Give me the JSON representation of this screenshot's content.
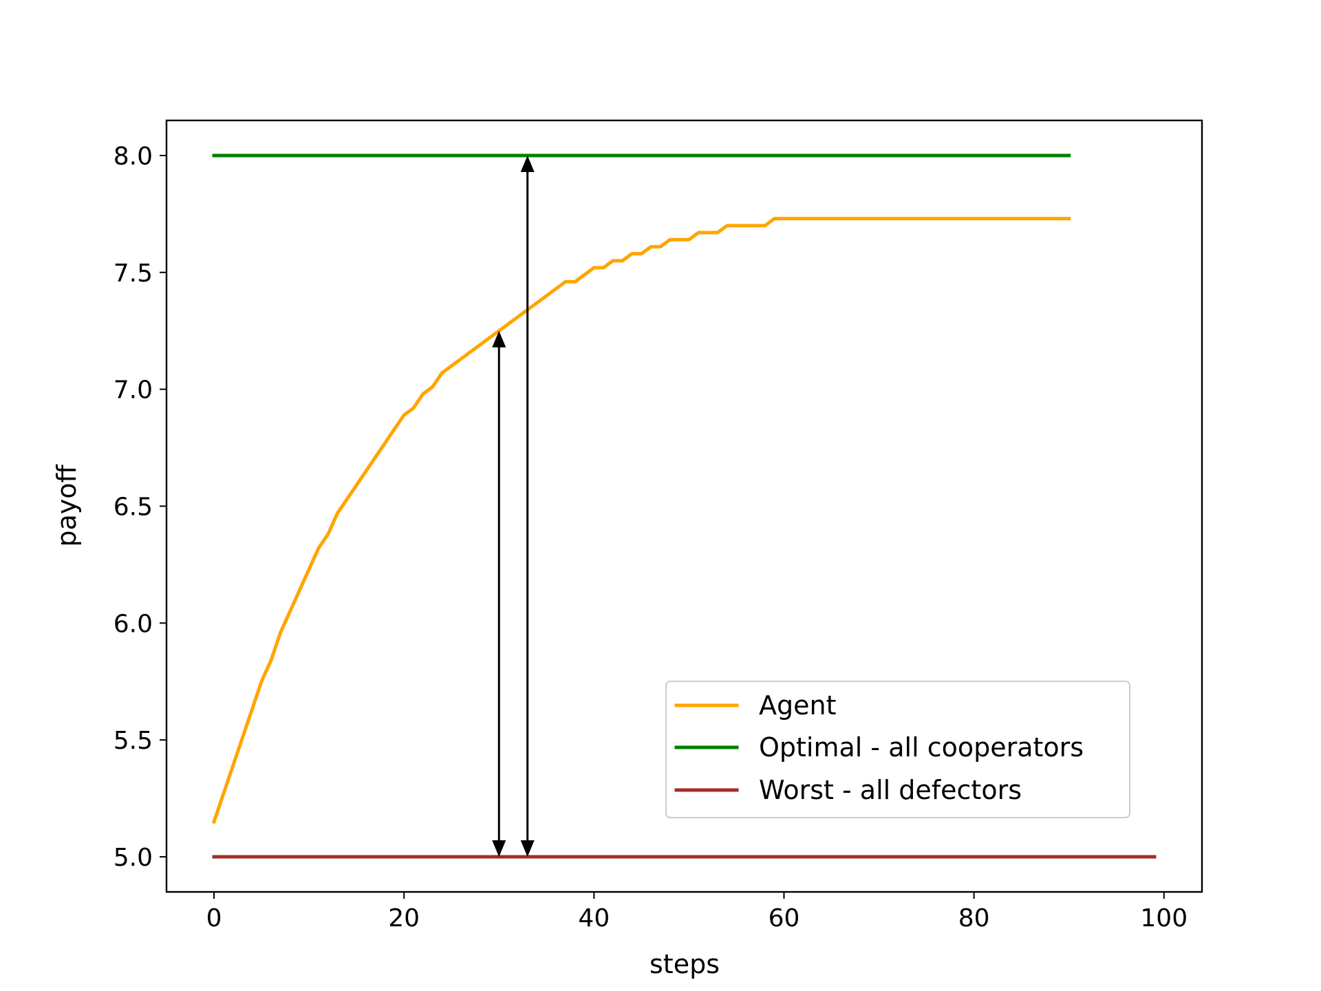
{
  "chart_data": {
    "type": "line",
    "title": "",
    "xlabel": "steps",
    "ylabel": "payoff",
    "xlim": [
      -5,
      104
    ],
    "ylim": [
      4.85,
      8.15
    ],
    "xticks": [
      0,
      20,
      40,
      60,
      80,
      100
    ],
    "xtick_labels": [
      "0",
      "20",
      "40",
      "60",
      "80",
      "100"
    ],
    "yticks": [
      5.0,
      5.5,
      6.0,
      6.5,
      7.0,
      7.5,
      8.0
    ],
    "ytick_labels": [
      "5.0",
      "5.5",
      "6.0",
      "6.5",
      "7.0",
      "7.5",
      "8.0"
    ],
    "grid": false,
    "legend_position": "lower-right",
    "series": [
      {
        "name": "Agent",
        "color": "#ffa500",
        "points": [
          [
            0,
            5.15
          ],
          [
            1,
            5.27
          ],
          [
            2,
            5.39
          ],
          [
            3,
            5.51
          ],
          [
            4,
            5.63
          ],
          [
            5,
            5.75
          ],
          [
            6,
            5.84
          ],
          [
            7,
            5.96
          ],
          [
            8,
            6.05
          ],
          [
            9,
            6.14
          ],
          [
            10,
            6.23
          ],
          [
            11,
            6.32
          ],
          [
            12,
            6.38
          ],
          [
            13,
            6.47
          ],
          [
            14,
            6.53
          ],
          [
            15,
            6.59
          ],
          [
            16,
            6.65
          ],
          [
            17,
            6.71
          ],
          [
            18,
            6.77
          ],
          [
            19,
            6.83
          ],
          [
            20,
            6.89
          ],
          [
            21,
            6.92
          ],
          [
            22,
            6.98
          ],
          [
            23,
            7.01
          ],
          [
            24,
            7.07
          ],
          [
            25,
            7.1
          ],
          [
            26,
            7.13
          ],
          [
            27,
            7.16
          ],
          [
            28,
            7.19
          ],
          [
            29,
            7.22
          ],
          [
            30,
            7.25
          ],
          [
            31,
            7.28
          ],
          [
            32,
            7.31
          ],
          [
            33,
            7.34
          ],
          [
            34,
            7.37
          ],
          [
            35,
            7.4
          ],
          [
            36,
            7.43
          ],
          [
            37,
            7.46
          ],
          [
            38,
            7.46
          ],
          [
            39,
            7.49
          ],
          [
            40,
            7.52
          ],
          [
            41,
            7.52
          ],
          [
            42,
            7.55
          ],
          [
            43,
            7.55
          ],
          [
            44,
            7.58
          ],
          [
            45,
            7.58
          ],
          [
            46,
            7.61
          ],
          [
            47,
            7.61
          ],
          [
            48,
            7.64
          ],
          [
            49,
            7.64
          ],
          [
            50,
            7.64
          ],
          [
            51,
            7.67
          ],
          [
            52,
            7.67
          ],
          [
            53,
            7.67
          ],
          [
            54,
            7.7
          ],
          [
            55,
            7.7
          ],
          [
            56,
            7.7
          ],
          [
            57,
            7.7
          ],
          [
            58,
            7.7
          ],
          [
            59,
            7.73
          ],
          [
            60,
            7.73
          ],
          [
            70,
            7.73
          ],
          [
            80,
            7.73
          ],
          [
            90,
            7.73
          ]
        ]
      },
      {
        "name": "Optimal - all cooperators",
        "color": "#008000",
        "points": [
          [
            0,
            8.0
          ],
          [
            90,
            8.0
          ]
        ]
      },
      {
        "name": "Worst - all defectors",
        "color": "#a52a2a",
        "points": [
          [
            0,
            5.0
          ],
          [
            99,
            5.0
          ]
        ]
      }
    ],
    "annotations": [
      {
        "type": "double-arrow",
        "x": 30,
        "y_from": 5.0,
        "y_to": 7.25
      },
      {
        "type": "double-arrow",
        "x": 33,
        "y_from": 5.0,
        "y_to": 8.0
      }
    ]
  }
}
